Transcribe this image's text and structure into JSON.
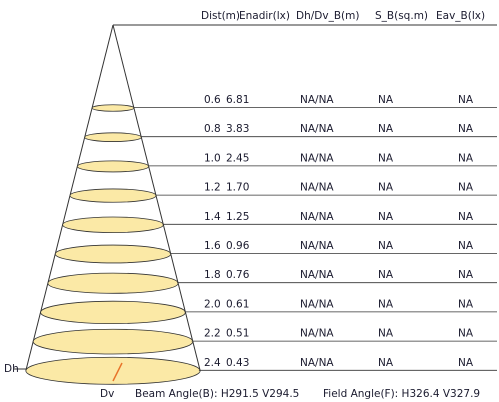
{
  "headers": {
    "dist": "Dist(m)",
    "enadir": "Enadir(lx)",
    "dh_dv": "Dh/Dv_B(m)",
    "s_b": "S_B(sq.m)",
    "eav": "Eav_B(lx)"
  },
  "rows": [
    {
      "dist": "0.6",
      "enadir": "6.81",
      "dh_dv": "NA/NA",
      "s_b": "NA",
      "eav": "NA"
    },
    {
      "dist": "0.8",
      "enadir": "3.83",
      "dh_dv": "NA/NA",
      "s_b": "NA",
      "eav": "NA"
    },
    {
      "dist": "1.0",
      "enadir": "2.45",
      "dh_dv": "NA/NA",
      "s_b": "NA",
      "eav": "NA"
    },
    {
      "dist": "1.2",
      "enadir": "1.70",
      "dh_dv": "NA/NA",
      "s_b": "NA",
      "eav": "NA"
    },
    {
      "dist": "1.4",
      "enadir": "1.25",
      "dh_dv": "NA/NA",
      "s_b": "NA",
      "eav": "NA"
    },
    {
      "dist": "1.6",
      "enadir": "0.96",
      "dh_dv": "NA/NA",
      "s_b": "NA",
      "eav": "NA"
    },
    {
      "dist": "1.8",
      "enadir": "0.76",
      "dh_dv": "NA/NA",
      "s_b": "NA",
      "eav": "NA"
    },
    {
      "dist": "2.0",
      "enadir": "0.61",
      "dh_dv": "NA/NA",
      "s_b": "NA",
      "eav": "NA"
    },
    {
      "dist": "2.2",
      "enadir": "0.51",
      "dh_dv": "NA/NA",
      "s_b": "NA",
      "eav": "NA"
    },
    {
      "dist": "2.4",
      "enadir": "0.43",
      "dh_dv": "NA/NA",
      "s_b": "NA",
      "eav": "NA"
    }
  ],
  "labels": {
    "dh": "Dh",
    "dv": "Dv",
    "beam_angle": "Beam Angle(B): H291.5 V294.5",
    "field_angle": "Field Angle(F): H326.4 V327.9"
  },
  "colors": {
    "ellipse_fill": "#fbe9a6",
    "line": "#333333",
    "dv_marker": "#e8742a",
    "text": "#1a1a2e"
  }
}
